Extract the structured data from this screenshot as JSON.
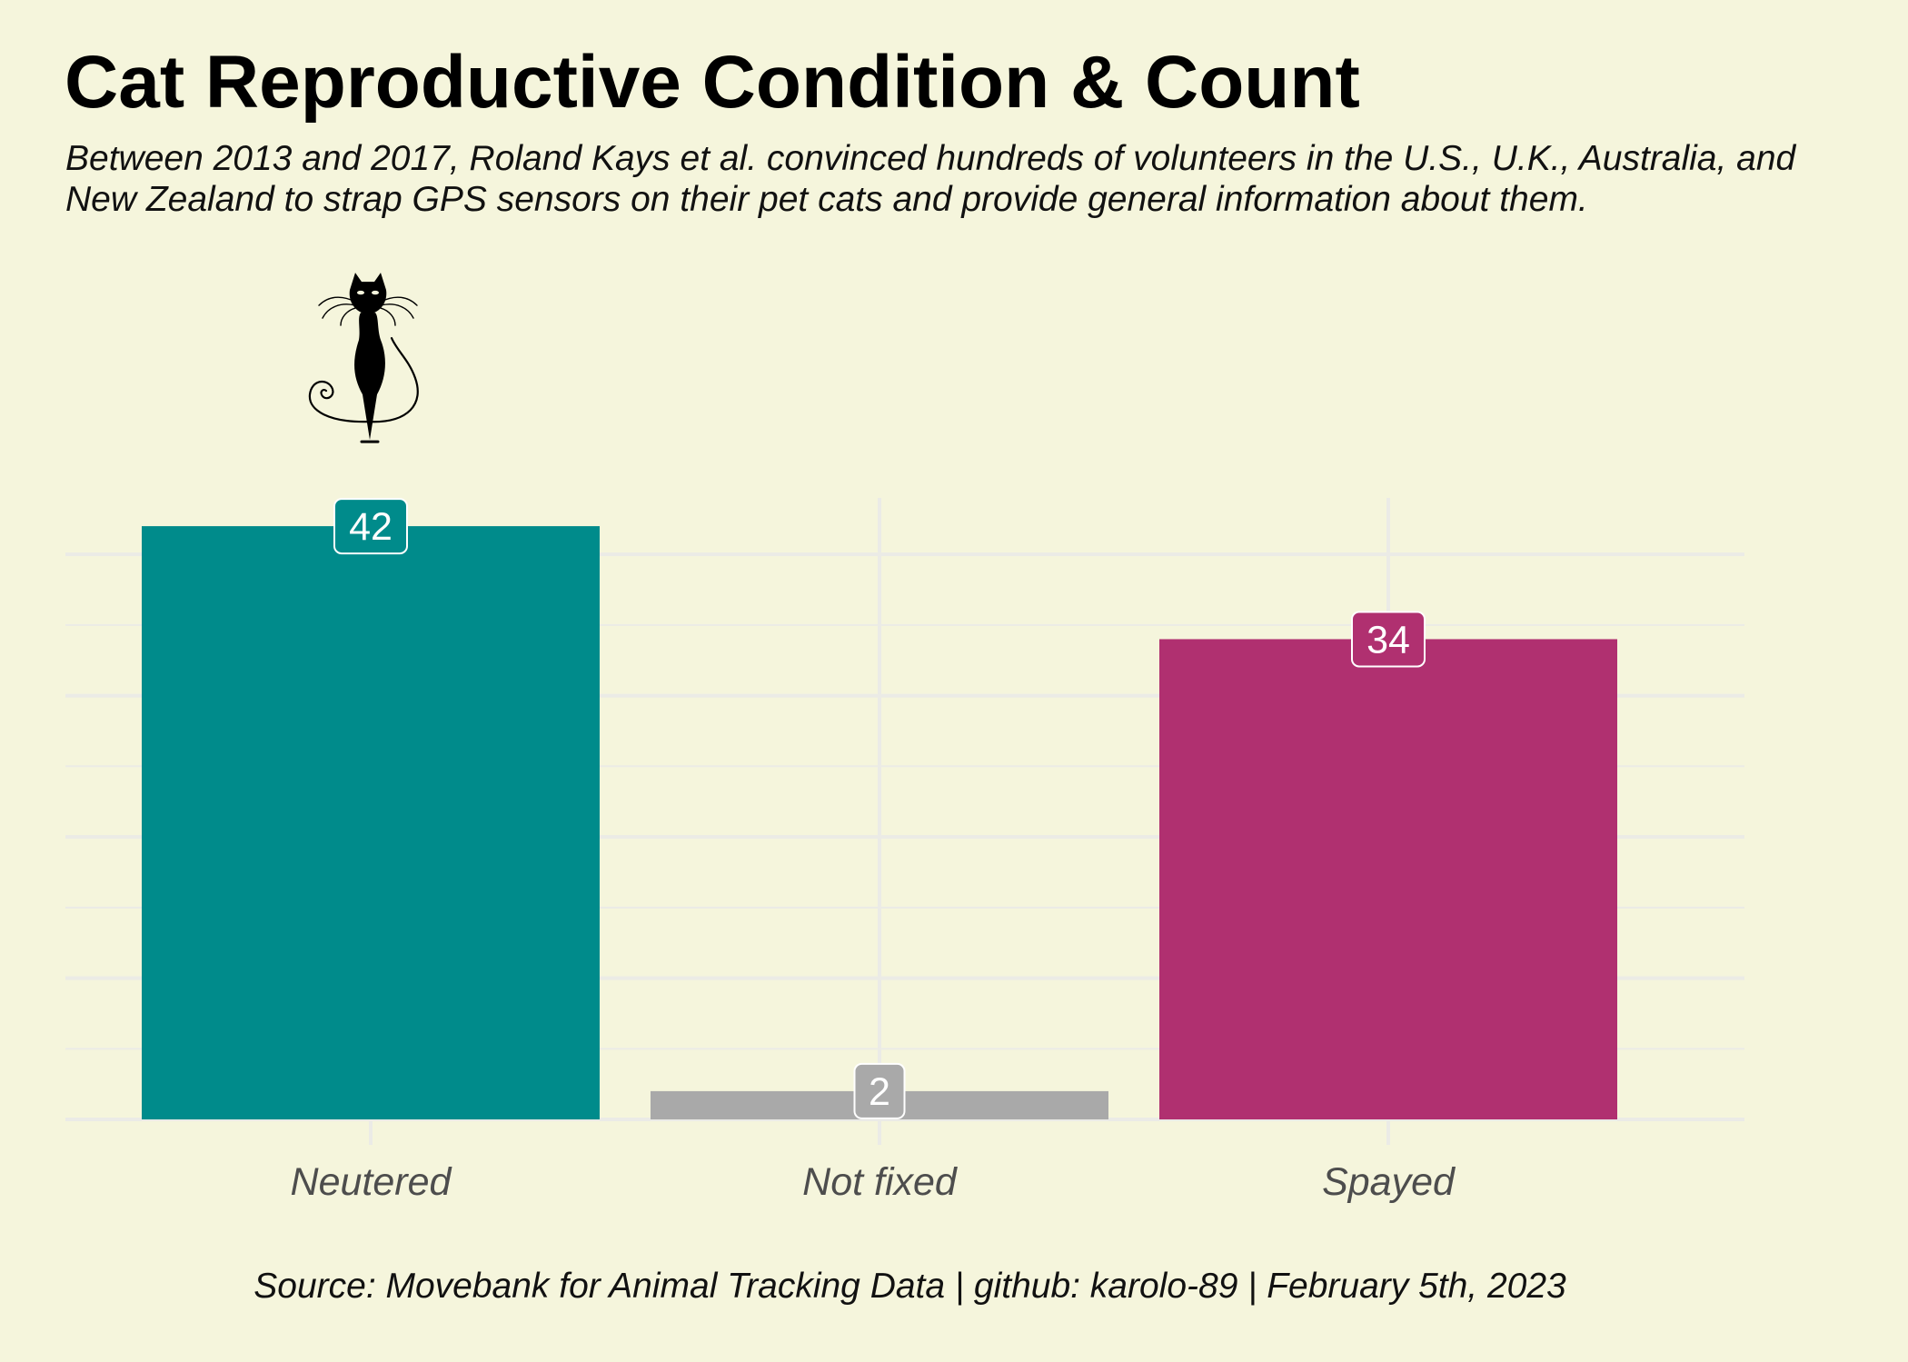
{
  "chart_data": {
    "type": "bar",
    "title": "Cat Reproductive Condition & Count",
    "subtitle": "Between 2013 and 2017, Roland Kays et al. convinced hundreds of volunteers in the U.S., U.K., Australia, and New Zealand to strap GPS sensors on their pet cats and provide general information about them.",
    "caption": "Source: Movebank for Animal Tracking Data | github: karolo-89 | February 5th, 2023",
    "categories": [
      "Neutered",
      "Not fixed",
      "Spayed"
    ],
    "values": [
      42,
      2,
      34
    ],
    "colors": [
      "#008b8b",
      "#a9a9a9",
      "#b03070"
    ],
    "ylim": [
      0,
      44
    ],
    "grid": true,
    "y_axis_labels": false,
    "legend": "none",
    "annotation_icon": "cat-icon",
    "annotation_category": "Neutered"
  },
  "colors": {
    "background": "#f5f5dc",
    "grid": "#ebebe6",
    "label_border": "#ffffff"
  }
}
